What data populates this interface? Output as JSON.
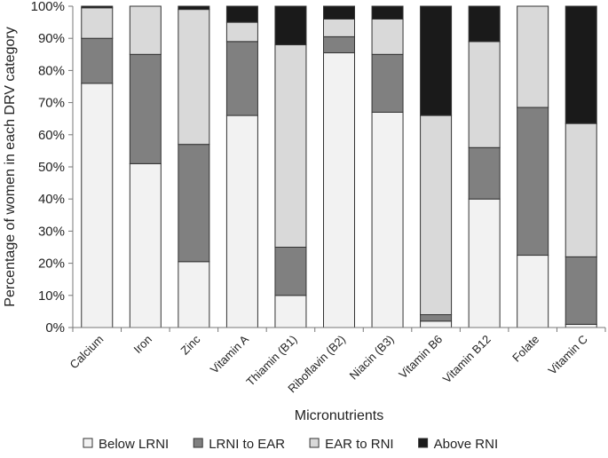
{
  "chart_data": {
    "type": "bar",
    "stacked": true,
    "percent_stacked": true,
    "title": "",
    "xlabel": "Micronutrients",
    "ylabel": "Percentage of women in each DRV category",
    "ylim": [
      0,
      100
    ],
    "y_ticks": [
      "0%",
      "10%",
      "20%",
      "30%",
      "40%",
      "50%",
      "60%",
      "70%",
      "80%",
      "90%",
      "100%"
    ],
    "grid": false,
    "legend_position": "bottom",
    "categories": [
      "Calcium",
      "Iron",
      "Zinc",
      "Vitamin A",
      "Thiamin (B1)",
      "Riboflavin (B2)",
      "Niacin (B3)",
      "Vitamin B6",
      "Vitamin B12",
      "Folate",
      "Vitamin C"
    ],
    "series": [
      {
        "name": "Below LRNI",
        "color": "#f2f2f2",
        "values": [
          76,
          51,
          20.5,
          66,
          10,
          85.5,
          67,
          2,
          40,
          22.5,
          1
        ]
      },
      {
        "name": "LRNI to EAR",
        "color": "#808080",
        "values": [
          14,
          34,
          36.5,
          23,
          15,
          5,
          18,
          2,
          16,
          46,
          21
        ]
      },
      {
        "name": "EAR to RNI",
        "color": "#d9d9d9",
        "values": [
          9.5,
          15,
          42,
          6,
          63,
          5.5,
          11,
          62,
          33,
          31.5,
          41.5
        ]
      },
      {
        "name": "Above RNI",
        "color": "#1a1a1a",
        "values": [
          0.5,
          0,
          1,
          5,
          12,
          4,
          4,
          34,
          11,
          0,
          36.5
        ]
      }
    ]
  }
}
